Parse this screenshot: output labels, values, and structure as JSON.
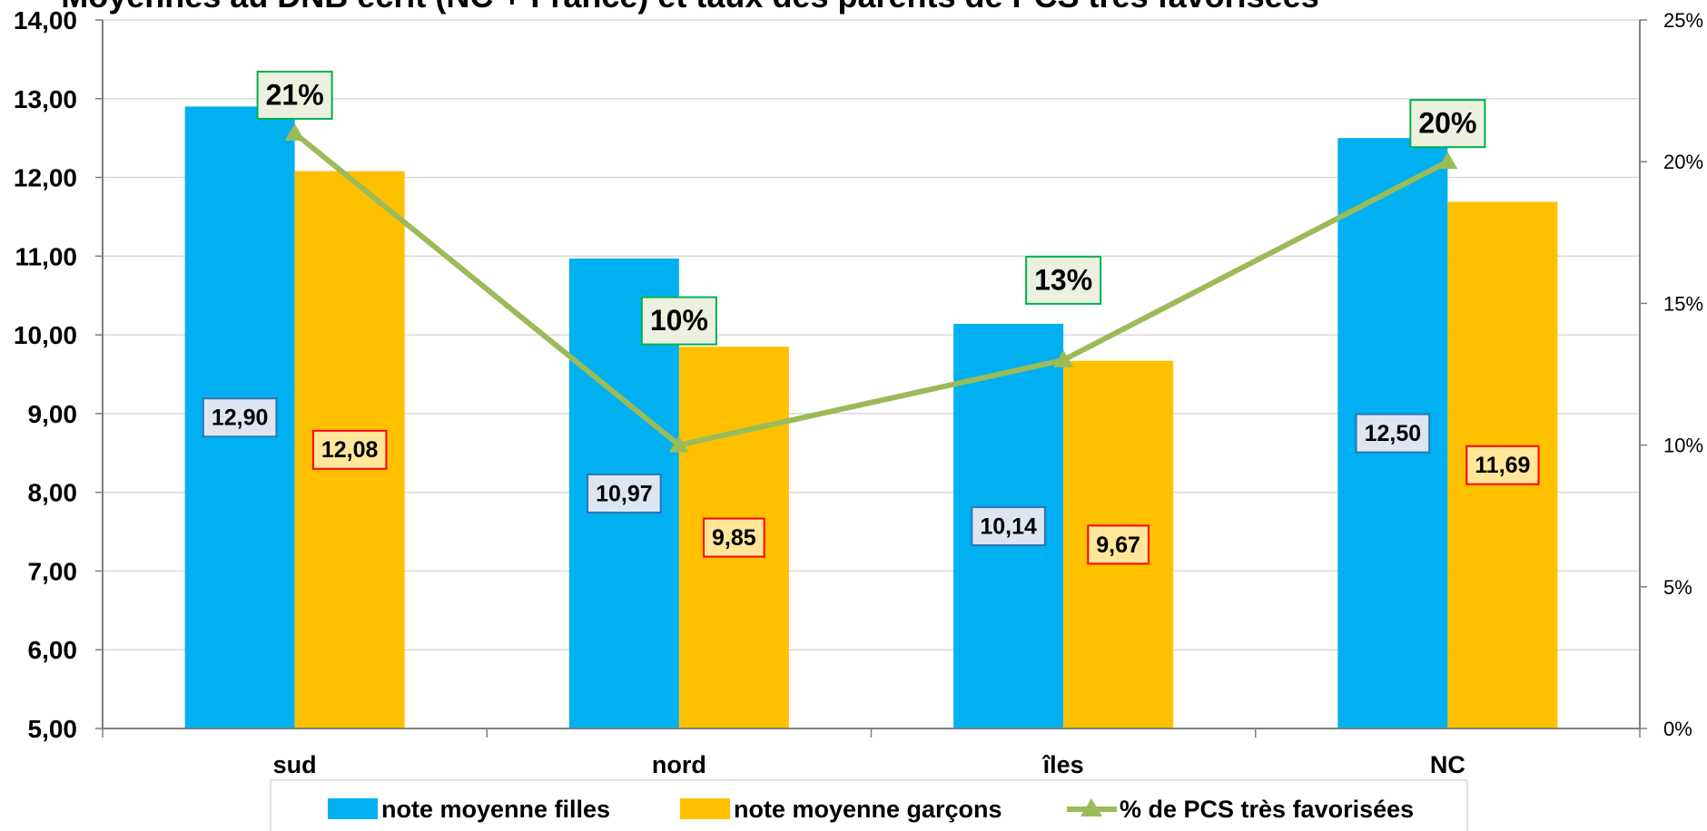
{
  "chart_data": {
    "type": "bar",
    "title": "Moyennes au DNB écrit (NC + France) et taux des parents de PCS très favorisées",
    "categories": [
      "sud",
      "nord",
      "îles",
      "NC"
    ],
    "series": [
      {
        "name": "note moyenne filles",
        "type": "bar",
        "axis": "left",
        "color": "#00B0F0",
        "values": [
          12.9,
          10.97,
          10.14,
          12.5
        ],
        "labels": [
          "12,90",
          "10,97",
          "10,14",
          "12,50"
        ],
        "label_fill": "#DCE6F2",
        "label_border": "#2E75B6"
      },
      {
        "name": "note moyenne garçons",
        "type": "bar",
        "axis": "left",
        "color": "#FFC000",
        "values": [
          12.08,
          9.85,
          9.67,
          11.69
        ],
        "labels": [
          "12,08",
          "9,85",
          "9,67",
          "11,69"
        ],
        "label_fill": "#FFE699",
        "label_border": "#FF0000"
      },
      {
        "name": "% de PCS  très favorisées",
        "type": "line",
        "axis": "right",
        "color": "#9BBB59",
        "values": [
          0.21,
          0.1,
          0.13,
          0.2
        ],
        "labels": [
          "21%",
          "10%",
          "13%",
          "20%"
        ],
        "label_fill": "#EBF1DE",
        "label_border": "#00B050"
      }
    ],
    "y_left": {
      "min": 5,
      "max": 14,
      "step": 1,
      "tick_labels": [
        "5,00",
        "6,00",
        "7,00",
        "8,00",
        "9,00",
        "10,00",
        "11,00",
        "12,00",
        "13,00",
        "14,00"
      ]
    },
    "y_right": {
      "min": 0,
      "max": 0.25,
      "step": 0.05,
      "tick_labels": [
        "0%",
        "5%",
        "10%",
        "15%",
        "20%",
        "25%"
      ]
    },
    "grid": true,
    "legend_position": "bottom"
  }
}
